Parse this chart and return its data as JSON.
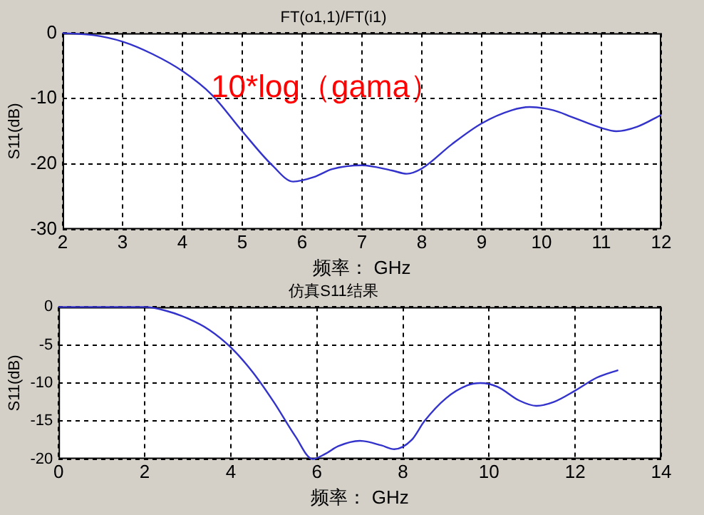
{
  "chart_data": [
    {
      "type": "line",
      "title": "FT(o1,1)/FT(i1)",
      "xlabel": "频率： GHz",
      "ylabel": "S11(dB)",
      "annotations": [
        "10*log（gama）"
      ],
      "series": [
        {
          "color": "#3333cc",
          "x": [
            2,
            2.5,
            3,
            3.5,
            4,
            4.5,
            5,
            5.5,
            5.85,
            6.2,
            6.5,
            7,
            7.5,
            7.75,
            8,
            8.5,
            9,
            9.5,
            9.8,
            10.2,
            10.5,
            11,
            11.25,
            11.6,
            12
          ],
          "values": [
            0,
            -0.3,
            -1.3,
            -3.2,
            -5.8,
            -9.5,
            -15,
            -20.2,
            -22.7,
            -22,
            -20.8,
            -20.2,
            -21,
            -21.5,
            -20.7,
            -17,
            -13.8,
            -11.8,
            -11.3,
            -11.8,
            -12.8,
            -14.5,
            -15,
            -14.3,
            -12.5
          ]
        }
      ],
      "xlim": [
        2,
        12
      ],
      "xticks": [
        2,
        3,
        4,
        5,
        6,
        7,
        8,
        9,
        10,
        11,
        12
      ],
      "ylim": [
        -30,
        0
      ],
      "yticks": [
        -30,
        -20,
        -10,
        0
      ],
      "grid": true,
      "line_style": "solid",
      "marker": "none"
    },
    {
      "type": "line",
      "title": "仿真S11结果",
      "xlabel": "频率： GHz",
      "ylabel": "S11(dB)",
      "series": [
        {
          "color": "#3333cc",
          "x": [
            0,
            2,
            2.5,
            3,
            3.5,
            4,
            4.5,
            5,
            5.5,
            5.9,
            6.2,
            6.5,
            7,
            7.5,
            7.8,
            8.2,
            8.5,
            9,
            9.5,
            9.8,
            10.2,
            10.7,
            11.1,
            11.5,
            12,
            12.5,
            13
          ],
          "values": [
            0,
            0,
            -0.5,
            -1.5,
            -3,
            -5.3,
            -8.5,
            -12.5,
            -17,
            -20,
            -19.3,
            -18.3,
            -17.6,
            -18.2,
            -18.7,
            -17.5,
            -15,
            -12,
            -10.3,
            -10,
            -10.5,
            -12.3,
            -13,
            -12.5,
            -11,
            -9.3,
            -8.3
          ]
        }
      ],
      "xlim": [
        0,
        14
      ],
      "xticks": [
        0,
        2,
        4,
        6,
        8,
        10,
        12,
        14
      ],
      "ylim": [
        -20,
        0
      ],
      "yticks": [
        -20,
        -15,
        -10,
        -5,
        0
      ],
      "grid": true,
      "line_style": "solid",
      "marker": "none"
    }
  ]
}
